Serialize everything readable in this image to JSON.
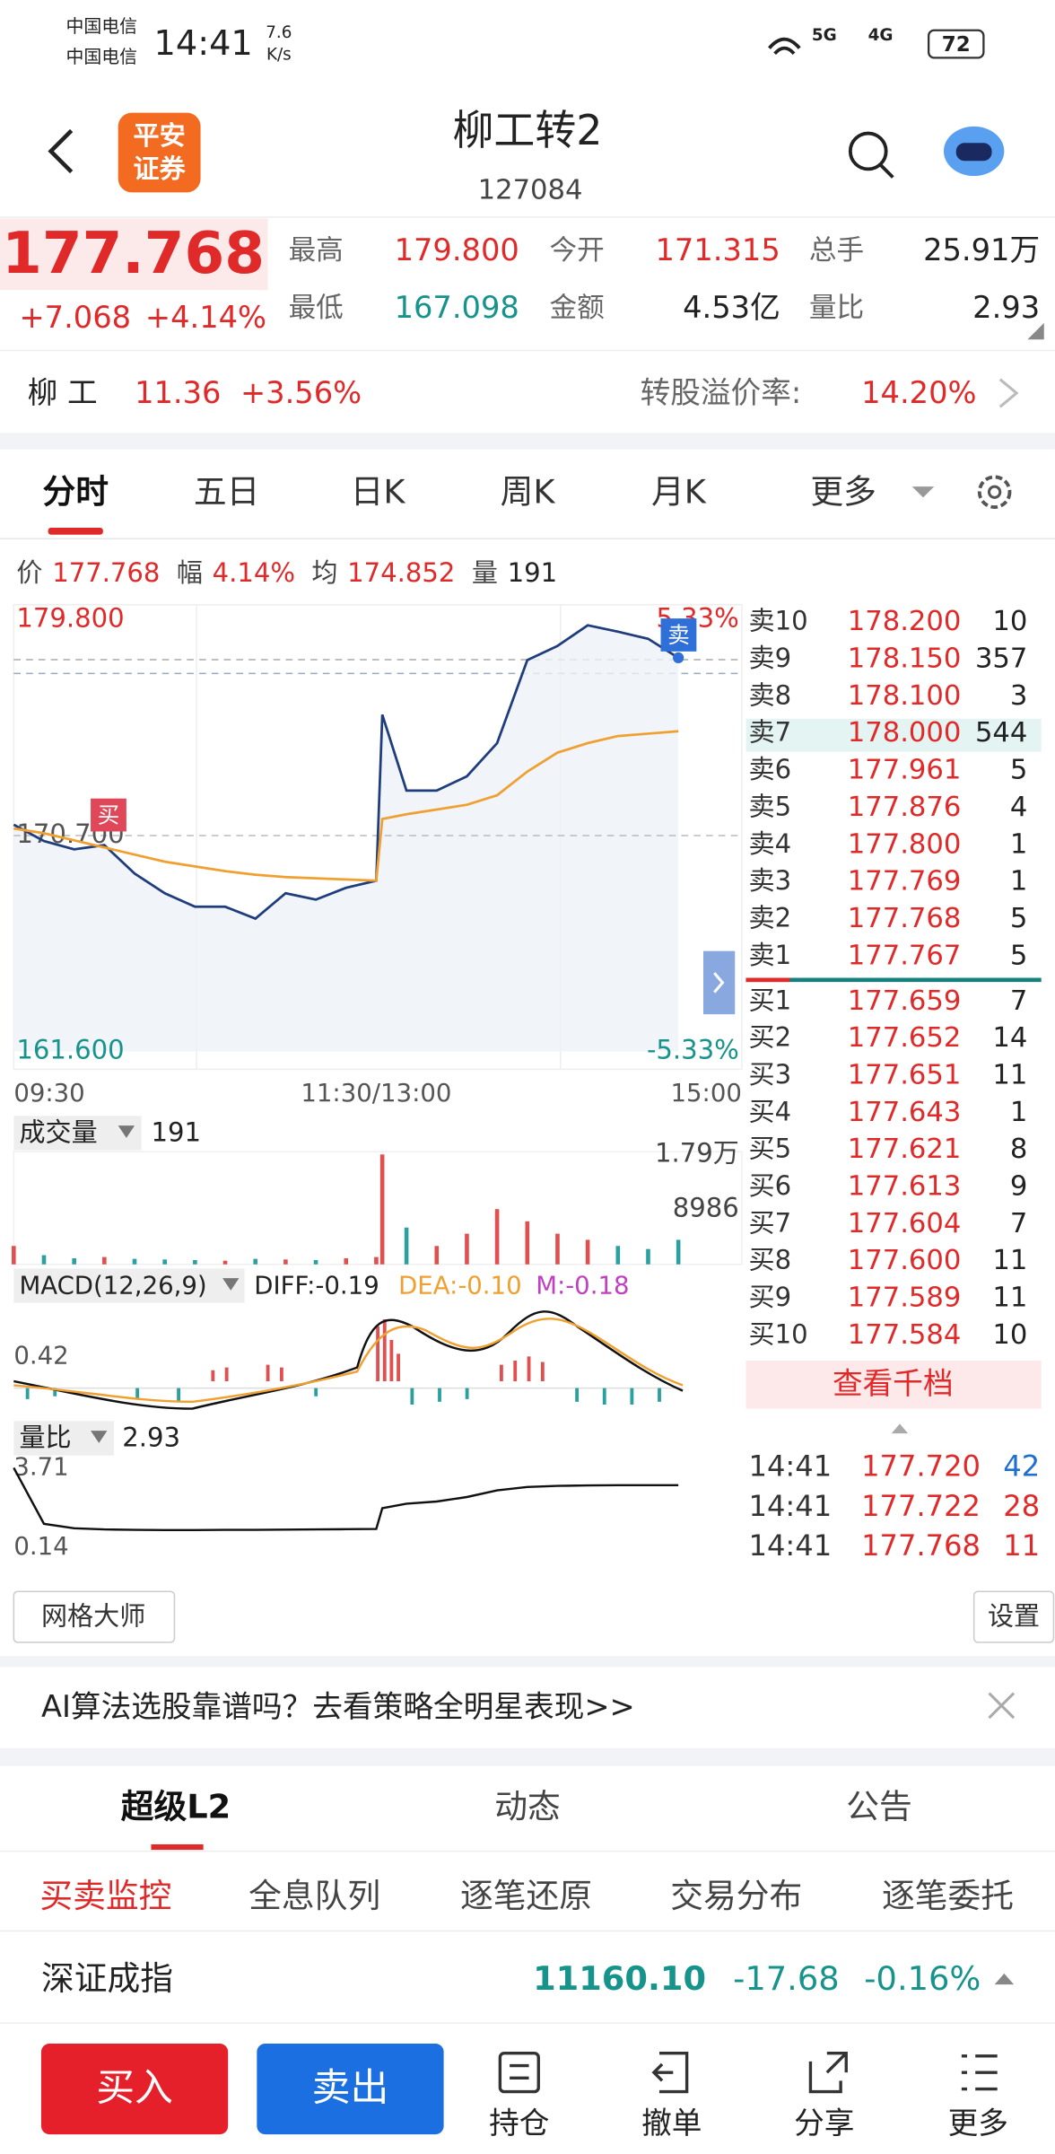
{
  "status": {
    "carrier1": "中国电信",
    "carrier2": "中国电信",
    "time": "14:41",
    "speed": "7.6",
    "speed_unit": "K/s",
    "net1": "5G",
    "net2": "4G",
    "battery": "72"
  },
  "header": {
    "logo_line1": "平安",
    "logo_line2": "证券",
    "name": "柳工转2",
    "code": "127084"
  },
  "quote": {
    "price": "177.768",
    "change": "+7.068",
    "pct": "+4.14%",
    "stats": [
      {
        "label": "最高",
        "value": "179.800",
        "color": "#e02a2a"
      },
      {
        "label": "今开",
        "value": "171.315",
        "color": "#e02a2a"
      },
      {
        "label": "总手",
        "value": "25.91万",
        "color": "#222222"
      },
      {
        "label": "最低",
        "value": "167.098",
        "color": "#16948c"
      },
      {
        "label": "金额",
        "value": "4.53亿",
        "color": "#222222"
      },
      {
        "label": "量比",
        "value": "2.93",
        "color": "#222222"
      }
    ]
  },
  "stock": {
    "name": "柳 工",
    "price": "11.36",
    "pct": "+3.56%",
    "premium_label": "转股溢价率:",
    "premium": "14.20%"
  },
  "tabs": [
    "分时",
    "五日",
    "日K",
    "周K",
    "月K",
    "更多"
  ],
  "info": [
    {
      "label": "价",
      "value": "177.768"
    },
    {
      "label": "幅",
      "value": "4.14%"
    },
    {
      "label": "均",
      "value": "174.852"
    },
    {
      "label": "量",
      "value": "191"
    }
  ],
  "chart": {
    "type": "line",
    "buy_marker": "买",
    "sell_marker": "卖",
    "x": [
      0,
      10,
      20,
      30,
      40,
      50,
      60,
      70,
      80,
      90,
      100,
      110,
      120,
      122,
      130,
      140,
      150,
      160,
      170,
      180,
      190,
      200,
      210,
      220
    ],
    "xlim": [
      0,
      241
    ],
    "xticks": [
      {
        "value": 0,
        "label": "09:30"
      },
      {
        "value": 120,
        "label": "11:30/13:00"
      },
      {
        "value": 241,
        "label": "15:00"
      }
    ],
    "ylim": [
      161.6,
      179.8
    ],
    "yticks": [
      {
        "value": 179.8,
        "label": "179.800"
      },
      {
        "value": 170.7,
        "label": "170.700"
      },
      {
        "value": 161.6,
        "label": "161.600"
      }
    ],
    "y2lim": [
      -5.33,
      5.33
    ],
    "y2ticks": [
      {
        "value": 5.33,
        "label": "5.33%"
      },
      {
        "value": -5.33,
        "label": "-5.33%"
      }
    ],
    "series": [
      {
        "color": "#1f3c7d",
        "values": [
          171.16,
          170.47,
          170.12,
          170.3,
          169.1,
          168.27,
          167.7,
          167.7,
          167.2,
          168.27,
          168,
          168.5,
          168.8,
          175.8,
          172.6,
          172.6,
          173.2,
          174.6,
          178.1,
          178.7,
          179.57,
          179.3,
          179,
          178.2
        ]
      },
      {
        "color": "#f0a030",
        "values": [
          171.0,
          170.8,
          170.5,
          170.2,
          169.9,
          169.6,
          169.4,
          169.2,
          169.05,
          168.95,
          168.9,
          168.85,
          168.8,
          171.4,
          171.6,
          171.8,
          172.0,
          172.4,
          173.4,
          174.2,
          174.6,
          174.9,
          175.0,
          175.1
        ]
      }
    ]
  },
  "volume": {
    "label": "成交量",
    "current": "191",
    "ylim": [
      0,
      17900
    ],
    "yticks": [
      {
        "value": 17900,
        "label": "1.79万"
      },
      {
        "value": 8986,
        "label": "8986"
      }
    ],
    "values": [
      3000,
      1500,
      1000,
      1200,
      900,
      800,
      700,
      600,
      900,
      800,
      700,
      1000,
      1200,
      17900,
      6000,
      3000,
      5000,
      9000,
      7000,
      5000,
      4000,
      3000,
      2500,
      4000
    ]
  },
  "macd": {
    "label": "MACD(12,26,9)",
    "diff": "DIFF:-0.19",
    "dea": "DEA:-0.10",
    "m": "M:-0.18",
    "tick": "0.42"
  },
  "ratio": {
    "label": "量比",
    "current": "2.93",
    "ylim": [
      0.14,
      3.71
    ],
    "yticks": [
      3.71,
      0.14
    ],
    "color": "#111111",
    "values": [
      3.71,
      1.2,
      1.0,
      0.95,
      0.93,
      0.92,
      0.92,
      0.93,
      0.93,
      0.94,
      0.95,
      0.96,
      0.97,
      1.9,
      2.1,
      2.2,
      2.4,
      2.7,
      2.85,
      2.9,
      2.92,
      2.93,
      2.93,
      2.93
    ]
  },
  "orderbook": {
    "asks": [
      {
        "label": "卖10",
        "price": "178.200",
        "qty": "10"
      },
      {
        "label": "卖9",
        "price": "178.150",
        "qty": "357"
      },
      {
        "label": "卖8",
        "price": "178.100",
        "qty": "3"
      },
      {
        "label": "卖7",
        "price": "178.000",
        "qty": "544"
      },
      {
        "label": "卖6",
        "price": "177.961",
        "qty": "5"
      },
      {
        "label": "卖5",
        "price": "177.876",
        "qty": "4"
      },
      {
        "label": "卖4",
        "price": "177.800",
        "qty": "1"
      },
      {
        "label": "卖3",
        "price": "177.769",
        "qty": "1"
      },
      {
        "label": "卖2",
        "price": "177.768",
        "qty": "5"
      },
      {
        "label": "卖1",
        "price": "177.767",
        "qty": "5"
      }
    ],
    "bids": [
      {
        "label": "买1",
        "price": "177.659",
        "qty": "7"
      },
      {
        "label": "买2",
        "price": "177.652",
        "qty": "14"
      },
      {
        "label": "买3",
        "price": "177.651",
        "qty": "11"
      },
      {
        "label": "买4",
        "price": "177.643",
        "qty": "1"
      },
      {
        "label": "买5",
        "price": "177.621",
        "qty": "8"
      },
      {
        "label": "买6",
        "price": "177.613",
        "qty": "9"
      },
      {
        "label": "买7",
        "price": "177.604",
        "qty": "7"
      },
      {
        "label": "买8",
        "price": "177.600",
        "qty": "11"
      },
      {
        "label": "买9",
        "price": "177.589",
        "qty": "11"
      },
      {
        "label": "买10",
        "price": "177.584",
        "qty": "10"
      }
    ],
    "more": "查看千档",
    "trades": [
      {
        "time": "14:41",
        "price": "177.720",
        "qty": "42",
        "color": "#1f6fd0"
      },
      {
        "time": "14:41",
        "price": "177.722",
        "qty": "28",
        "color": "#e02a2a"
      },
      {
        "time": "14:41",
        "price": "177.768",
        "qty": "11",
        "color": "#e02a2a"
      }
    ]
  },
  "tools": {
    "grid": "网格大师",
    "settings": "设置"
  },
  "ad": "AI算法选股靠谱吗？去看策略全明星表现>>",
  "tabs2": [
    "超级L2",
    "动态",
    "公告"
  ],
  "subtabs": [
    "买卖监控",
    "全息队列",
    "逐笔还原",
    "交易分布",
    "逐笔委托"
  ],
  "index": {
    "name": "深证成指",
    "value": "11160.10",
    "change": "-17.68",
    "pct": "-0.16%"
  },
  "bottom": {
    "buy": "买入",
    "sell": "卖出",
    "items": [
      "持仓",
      "撤单",
      "分享",
      "更多"
    ]
  }
}
